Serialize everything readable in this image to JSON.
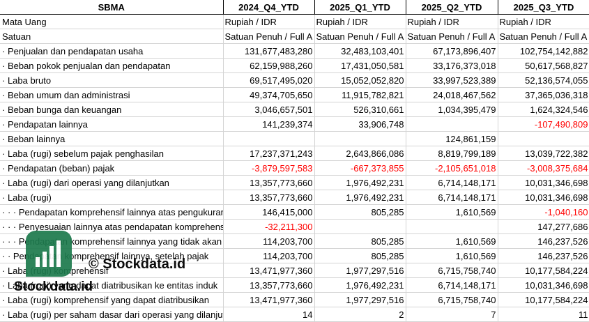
{
  "header": [
    "SBMA",
    "2024_Q4_YTD",
    "2025_Q1_YTD",
    "2025_Q2_YTD",
    "2025_Q3_YTD"
  ],
  "rows": [
    {
      "label": "Mata Uang",
      "indent": 0,
      "cells": [
        {
          "text": "Rupiah / IDR",
          "type": "txt"
        },
        {
          "text": "Rupiah / IDR",
          "type": "txt"
        },
        {
          "text": "Rupiah / IDR",
          "type": "txt"
        },
        {
          "text": "Rupiah / IDR",
          "type": "txt"
        }
      ]
    },
    {
      "label": "Satuan",
      "indent": 0,
      "cells": [
        {
          "text": "Satuan Penuh / Full A",
          "type": "txt"
        },
        {
          "text": "Satuan Penuh / Full A",
          "type": "txt"
        },
        {
          "text": "Satuan Penuh / Full A",
          "type": "txt"
        },
        {
          "text": "Satuan Penuh / Full A",
          "type": "txt"
        }
      ]
    },
    {
      "label": "· Penjualan dan pendapatan usaha",
      "indent": 1,
      "cells": [
        {
          "text": "131,677,483,280"
        },
        {
          "text": "32,483,103,401"
        },
        {
          "text": "67,173,896,407"
        },
        {
          "text": "102,754,142,882"
        }
      ]
    },
    {
      "label": "· Beban pokok penjualan dan pendapatan",
      "indent": 1,
      "cells": [
        {
          "text": "62,159,988,260"
        },
        {
          "text": "17,431,050,581"
        },
        {
          "text": "33,176,373,018"
        },
        {
          "text": "50,617,568,827"
        }
      ]
    },
    {
      "label": "· Laba bruto",
      "indent": 1,
      "cells": [
        {
          "text": "69,517,495,020"
        },
        {
          "text": "15,052,052,820"
        },
        {
          "text": "33,997,523,389"
        },
        {
          "text": "52,136,574,055"
        }
      ]
    },
    {
      "label": "· Beban umum dan administrasi",
      "indent": 1,
      "cells": [
        {
          "text": "49,374,705,650"
        },
        {
          "text": "11,915,782,821"
        },
        {
          "text": "24,018,467,562"
        },
        {
          "text": "37,365,036,318"
        }
      ]
    },
    {
      "label": "· Beban bunga dan keuangan",
      "indent": 1,
      "cells": [
        {
          "text": "3,046,657,501"
        },
        {
          "text": "526,310,661"
        },
        {
          "text": "1,034,395,479"
        },
        {
          "text": "1,624,324,546"
        }
      ]
    },
    {
      "label": "· Pendapatan lainnya",
      "indent": 1,
      "cells": [
        {
          "text": "141,239,374"
        },
        {
          "text": "33,906,748"
        },
        {
          "text": ""
        },
        {
          "text": "-107,490,809",
          "neg": true
        }
      ]
    },
    {
      "label": "· Beban lainnya",
      "indent": 1,
      "cells": [
        {
          "text": ""
        },
        {
          "text": ""
        },
        {
          "text": "124,861,159"
        },
        {
          "text": ""
        }
      ]
    },
    {
      "label": "· Laba (rugi) sebelum pajak penghasilan",
      "indent": 1,
      "cells": [
        {
          "text": "17,237,371,243"
        },
        {
          "text": "2,643,866,086"
        },
        {
          "text": "8,819,799,189"
        },
        {
          "text": "13,039,722,382"
        }
      ]
    },
    {
      "label": "· Pendapatan (beban) pajak",
      "indent": 1,
      "cells": [
        {
          "text": "-3,879,597,583",
          "neg": true
        },
        {
          "text": "-667,373,855",
          "neg": true
        },
        {
          "text": "-2,105,651,018",
          "neg": true
        },
        {
          "text": "-3,008,375,684",
          "neg": true
        }
      ]
    },
    {
      "label": "· Laba (rugi) dari operasi yang dilanjutkan",
      "indent": 1,
      "cells": [
        {
          "text": "13,357,773,660"
        },
        {
          "text": "1,976,492,231"
        },
        {
          "text": "6,714,148,171"
        },
        {
          "text": "10,031,346,698"
        }
      ]
    },
    {
      "label": "· Laba (rugi)",
      "indent": 1,
      "cells": [
        {
          "text": "13,357,773,660"
        },
        {
          "text": "1,976,492,231"
        },
        {
          "text": "6,714,148,171"
        },
        {
          "text": "10,031,346,698"
        }
      ]
    },
    {
      "label": "· · · Pendapatan komprehensif lainnya atas pengukuran",
      "indent": 3,
      "cells": [
        {
          "text": "146,415,000"
        },
        {
          "text": "805,285"
        },
        {
          "text": "1,610,569"
        },
        {
          "text": "-1,040,160",
          "neg": true
        }
      ]
    },
    {
      "label": "· · · Penyesuaian lainnya atas pendapatan komprehensif",
      "indent": 3,
      "cells": [
        {
          "text": "-32,211,300",
          "neg": true
        },
        {
          "text": ""
        },
        {
          "text": ""
        },
        {
          "text": "147,277,686"
        }
      ]
    },
    {
      "label": "· · · Pendapatan komprehensif lainnya yang tidak akan",
      "indent": 3,
      "cells": [
        {
          "text": "114,203,700"
        },
        {
          "text": "805,285"
        },
        {
          "text": "1,610,569"
        },
        {
          "text": "146,237,526"
        }
      ]
    },
    {
      "label": "· · Pendapatan komprehensif lainnya, setelah pajak",
      "indent": 2,
      "cells": [
        {
          "text": "114,203,700"
        },
        {
          "text": "805,285"
        },
        {
          "text": "1,610,569"
        },
        {
          "text": "146,237,526"
        }
      ]
    },
    {
      "label": "· Laba (rugi) komprehensif",
      "indent": 1,
      "cells": [
        {
          "text": "13,471,977,360"
        },
        {
          "text": "1,977,297,516"
        },
        {
          "text": "6,715,758,740"
        },
        {
          "text": "10,177,584,224"
        }
      ]
    },
    {
      "label": "· Laba (rugi) yang dapat diatribusikan ke entitas induk",
      "indent": 1,
      "cells": [
        {
          "text": "13,357,773,660"
        },
        {
          "text": "1,976,492,231"
        },
        {
          "text": "6,714,148,171"
        },
        {
          "text": "10,031,346,698"
        }
      ]
    },
    {
      "label": "· Laba (rugi) komprehensif yang dapat diatribusikan",
      "indent": 1,
      "cells": [
        {
          "text": "13,471,977,360"
        },
        {
          "text": "1,977,297,516"
        },
        {
          "text": "6,715,758,740"
        },
        {
          "text": "10,177,584,224"
        }
      ]
    },
    {
      "label": "· Laba (rugi) per saham dasar dari operasi yang dilanjutkan",
      "indent": 1,
      "cells": [
        {
          "text": "14"
        },
        {
          "text": "2"
        },
        {
          "text": "7"
        },
        {
          "text": "11"
        }
      ]
    }
  ],
  "watermark": {
    "top_text": "© Stockdata.id",
    "bottom_text": "Stockdata.id",
    "logo_color": "#1d7a4d"
  },
  "colors": {
    "negative": "#ff0000",
    "grid": "#d4d4d4"
  }
}
